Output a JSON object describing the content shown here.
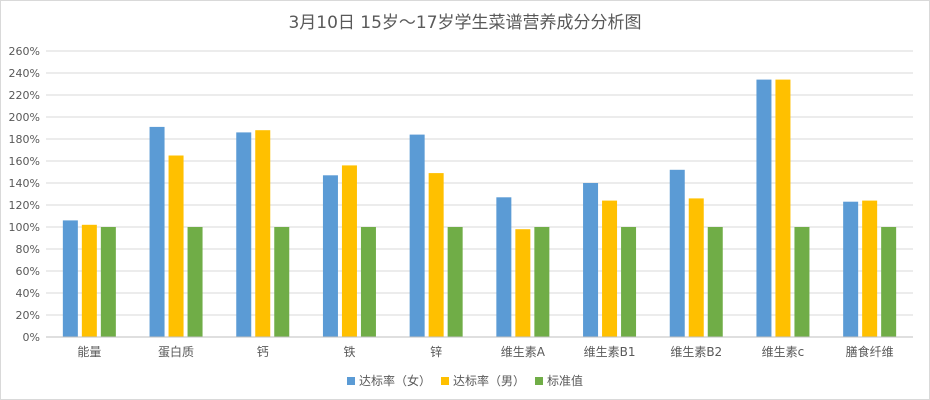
{
  "chart_data": {
    "type": "bar",
    "title": "3月10日 15岁～17岁学生菜谱营养成分分析图",
    "categories": [
      "能量",
      "蛋白质",
      "钙",
      "铁",
      "锌",
      "维生素A",
      "维生素B1",
      "维生素B2",
      "维生素c",
      "膳食纤维"
    ],
    "series": [
      {
        "name": "达标率（女）",
        "color": "#5b9bd5",
        "values": [
          106,
          191,
          186,
          147,
          184,
          127,
          140,
          152,
          234,
          123
        ]
      },
      {
        "name": "达标率（男）",
        "color": "#ffc000",
        "values": [
          102,
          165,
          188,
          156,
          149,
          98,
          124,
          126,
          234,
          124
        ]
      },
      {
        "name": "标准值",
        "color": "#70ad47",
        "values": [
          100,
          100,
          100,
          100,
          100,
          100,
          100,
          100,
          100,
          100
        ]
      }
    ],
    "ylim": [
      0,
      260
    ],
    "ytick_step": 20,
    "ytick_suffix": "%",
    "grid": true,
    "legend_position": "bottom"
  }
}
